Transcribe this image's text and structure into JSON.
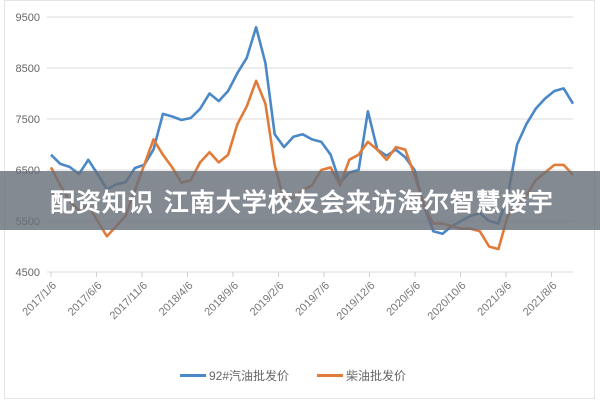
{
  "banner": {
    "text": "配资知识 江南大学校友会来访海尔智慧楼宇"
  },
  "chart_data": {
    "type": "line",
    "title": "",
    "xlabel": "",
    "ylabel": "",
    "ylim": [
      4500,
      9500
    ],
    "yticks": [
      9500,
      8500,
      7500,
      6500,
      5500,
      4500
    ],
    "grid": true,
    "legend_position": "bottom",
    "x_tick_labels": [
      "2017/1/6",
      "2017/6/6",
      "2017/11/6",
      "2018/4/6",
      "2018/9/6",
      "2019/2/6",
      "2019/7/6",
      "2019/12/6",
      "2020/5/6",
      "2020/10/6",
      "2021/3/6",
      "2021/8/6"
    ],
    "x": [
      "2017/1",
      "2017/2",
      "2017/3",
      "2017/4",
      "2017/5",
      "2017/6",
      "2017/7",
      "2017/8",
      "2017/9",
      "2017/10",
      "2017/11",
      "2017/12",
      "2018/1",
      "2018/2",
      "2018/3",
      "2018/4",
      "2018/5",
      "2018/6",
      "2018/7",
      "2018/8",
      "2018/9",
      "2018/10",
      "2018/11",
      "2018/12",
      "2019/1",
      "2019/2",
      "2019/3",
      "2019/4",
      "2019/5",
      "2019/6",
      "2019/7",
      "2019/8",
      "2019/9",
      "2019/10",
      "2019/11",
      "2019/12",
      "2020/1",
      "2020/2",
      "2020/3",
      "2020/4",
      "2020/5",
      "2020/6",
      "2020/7",
      "2020/8",
      "2020/9",
      "2020/10",
      "2020/11",
      "2020/12",
      "2021/1",
      "2021/2",
      "2021/3",
      "2021/4",
      "2021/5",
      "2021/6",
      "2021/7",
      "2021/8",
      "2021/9"
    ],
    "series": [
      {
        "name": "92#汽油批发价",
        "color": "#4a88c7",
        "values": [
          6800,
          6620,
          6560,
          6420,
          6700,
          6420,
          6120,
          6220,
          6260,
          6540,
          6600,
          6900,
          7600,
          7550,
          7480,
          7520,
          7700,
          8000,
          7850,
          8050,
          8400,
          8700,
          9300,
          8600,
          7200,
          6950,
          7150,
          7200,
          7100,
          7050,
          6800,
          6250,
          6450,
          6500,
          7650,
          6900,
          6780,
          6900,
          6750,
          6500,
          5800,
          5300,
          5250,
          5400,
          5500,
          5600,
          5650,
          5500,
          5450,
          6000,
          7000,
          7400,
          7700,
          7900,
          8050,
          8100,
          7800
        ]
      },
      {
        "name": "柴油批发价",
        "color": "#e07b39",
        "values": [
          6550,
          6200,
          5900,
          5700,
          5800,
          5500,
          5200,
          5400,
          5600,
          6100,
          6600,
          7100,
          6800,
          6550,
          6250,
          6300,
          6650,
          6850,
          6650,
          6800,
          7400,
          7750,
          8250,
          7800,
          6600,
          5900,
          5950,
          6100,
          6200,
          6500,
          6550,
          6200,
          6700,
          6800,
          7050,
          6900,
          6700,
          6950,
          6900,
          6400,
          5800,
          5450,
          5450,
          5400,
          5350,
          5350,
          5300,
          5000,
          4950,
          5600,
          5850,
          6000,
          6300,
          6450,
          6600,
          6600,
          6400
        ]
      }
    ]
  },
  "legend": {
    "items": [
      {
        "label": "92#汽油批发价",
        "color": "#4a88c7"
      },
      {
        "label": "柴油批发价",
        "color": "#e07b39"
      }
    ]
  }
}
